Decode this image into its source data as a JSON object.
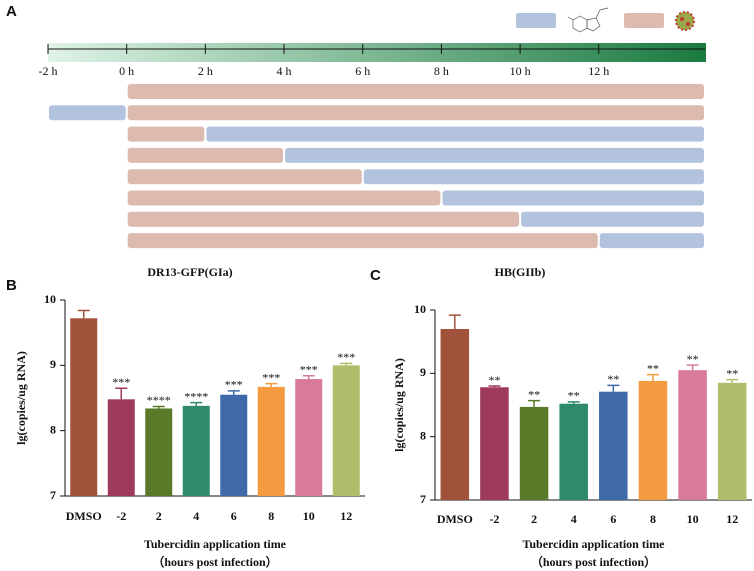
{
  "panel_labels": [
    "A",
    "B",
    "C"
  ],
  "chart_data": [
    {
      "type": "timeline",
      "xlim": [
        -2,
        14.7
      ],
      "xticks": [
        {
          "value": -2,
          "label": "-2 h"
        },
        {
          "value": 0,
          "label": "0 h"
        },
        {
          "value": 2,
          "label": "2 h"
        },
        {
          "value": 4,
          "label": "4 h"
        },
        {
          "value": 6,
          "label": "6 h"
        },
        {
          "value": 8,
          "label": "8 h"
        },
        {
          "value": 10,
          "label": "10 h"
        },
        {
          "value": 12,
          "label": "12 h"
        }
      ],
      "drug_color": "#b3c3dd",
      "virus_color": "#dcbab0",
      "rows": [
        {
          "drug": null,
          "virus": [
            0,
            14.7
          ]
        },
        {
          "drug": [
            -2,
            0
          ],
          "virus": [
            0,
            14.7
          ]
        },
        {
          "drug": [
            2,
            14.7
          ],
          "virus": [
            0,
            2
          ]
        },
        {
          "drug": [
            4,
            14.7
          ],
          "virus": [
            0,
            4
          ]
        },
        {
          "drug": [
            6,
            14.7
          ],
          "virus": [
            0,
            6
          ]
        },
        {
          "drug": [
            8,
            14.7
          ],
          "virus": [
            0,
            8
          ]
        },
        {
          "drug": [
            10,
            14.7
          ],
          "virus": [
            0,
            10
          ]
        },
        {
          "drug": [
            12,
            14.7
          ],
          "virus": [
            0,
            12
          ]
        }
      ]
    },
    {
      "type": "bar",
      "title": "DR13-GFP(GIa)",
      "xlabel": [
        "Tubercidin application time",
        "（hours post infection）"
      ],
      "ylabel": "lg(copies/ug RNA)",
      "categories": [
        "DMSO",
        "-2",
        "2",
        "4",
        "6",
        "8",
        "10",
        "12"
      ],
      "values": [
        9.72,
        8.48,
        8.34,
        8.38,
        8.55,
        8.67,
        8.79,
        9.0
      ],
      "errors": [
        0.12,
        0.17,
        0.03,
        0.05,
        0.06,
        0.05,
        0.05,
        0.03
      ],
      "value_labels": [
        null,
        "***",
        "****",
        "****",
        "***",
        "***",
        "***",
        "***"
      ],
      "colors": [
        "#a0523a",
        "#9e3a5a",
        "#5a7a2a",
        "#2e8a6a",
        "#3e6aaa",
        "#f49a40",
        "#d87a9a",
        "#aebe6a"
      ],
      "ylim": [
        7,
        10
      ],
      "yticks": [
        7,
        8,
        9,
        10
      ]
    },
    {
      "type": "bar",
      "title": "HB(GIIb)",
      "xlabel": [
        "Tubercidin application time",
        "（hours post infection）"
      ],
      "ylabel": "lg(copies/ug RNA)",
      "categories": [
        "DMSO",
        "-2",
        "2",
        "4",
        "6",
        "8",
        "10",
        "12"
      ],
      "values": [
        9.7,
        8.78,
        8.47,
        8.52,
        8.71,
        8.88,
        9.05,
        8.85
      ],
      "errors": [
        0.22,
        0.02,
        0.1,
        0.03,
        0.1,
        0.1,
        0.08,
        0.05
      ],
      "value_labels": [
        null,
        "**",
        "**",
        "**",
        "**",
        "**",
        "**",
        "**"
      ],
      "colors": [
        "#a0523a",
        "#9e3a5a",
        "#5a7a2a",
        "#2e8a6a",
        "#3e6aaa",
        "#f49a40",
        "#d87a9a",
        "#aebe6a"
      ],
      "ylim": [
        7,
        10
      ],
      "yticks": [
        7,
        8,
        9,
        10
      ]
    }
  ]
}
